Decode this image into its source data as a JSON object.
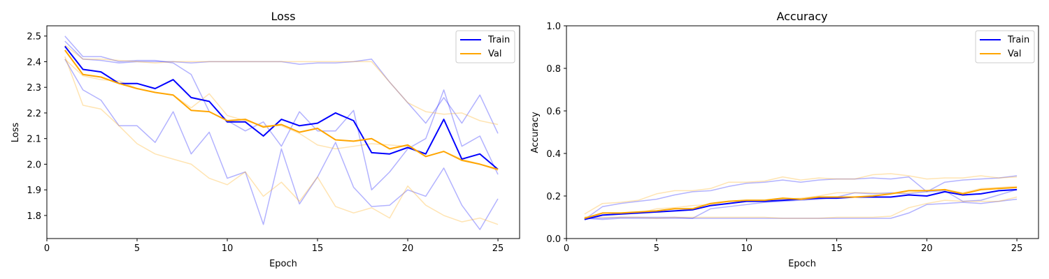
{
  "chart_data": [
    {
      "type": "line",
      "title": "Loss",
      "xlabel": "Epoch",
      "ylabel": "Loss",
      "xlim": [
        0,
        26.2
      ],
      "ylim": [
        1.71,
        2.54
      ],
      "xticks": [
        0,
        5,
        10,
        15,
        20,
        25
      ],
      "yticks": [
        1.8,
        1.9,
        2.0,
        2.1,
        2.2,
        2.3,
        2.4,
        2.5
      ],
      "ytick_labels": [
        "1.8",
        "1.9",
        "2.0",
        "2.1",
        "2.2",
        "2.3",
        "2.4",
        "2.5"
      ],
      "grid": false,
      "legend": "top-right",
      "x": [
        1,
        2,
        3,
        4,
        5,
        6,
        7,
        8,
        9,
        10,
        11,
        12,
        13,
        14,
        15,
        16,
        17,
        18,
        19,
        20,
        21,
        22,
        23,
        24,
        25
      ],
      "series": [
        {
          "name": "Train",
          "color": "#0000ff",
          "values": [
            2.46,
            2.37,
            2.36,
            2.315,
            2.315,
            2.295,
            2.33,
            2.26,
            2.245,
            2.165,
            2.165,
            2.11,
            2.175,
            2.15,
            2.16,
            2.2,
            2.17,
            2.045,
            2.04,
            2.065,
            2.04,
            2.175,
            2.02,
            2.04,
            1.98
          ]
        },
        {
          "name": "Val",
          "color": "#ffa500",
          "values": [
            2.445,
            2.35,
            2.34,
            2.315,
            2.295,
            2.28,
            2.27,
            2.21,
            2.205,
            2.17,
            2.175,
            2.145,
            2.155,
            2.125,
            2.14,
            2.095,
            2.09,
            2.1,
            2.06,
            2.075,
            2.03,
            2.05,
            2.015,
            2.0,
            1.98
          ]
        },
        {
          "color": "#0000ff",
          "faint": true,
          "values": [
            2.5,
            2.42,
            2.42,
            2.4,
            2.405,
            2.405,
            2.395,
            2.35,
            2.205,
            2.17,
            2.13,
            2.165,
            2.07,
            2.205,
            2.13,
            2.13,
            2.21,
            1.9,
            1.97,
            2.06,
            2.1,
            2.29,
            2.07,
            2.11,
            1.96
          ]
        },
        {
          "color": "#0000ff",
          "faint": true,
          "values": [
            2.41,
            2.29,
            2.25,
            2.15,
            2.15,
            2.085,
            2.205,
            2.04,
            2.125,
            1.945,
            1.97,
            1.765,
            2.06,
            1.845,
            1.95,
            2.085,
            1.91,
            1.835,
            1.84,
            1.9,
            1.875,
            1.985,
            1.84,
            1.745,
            1.865
          ]
        },
        {
          "color": "#0000ff",
          "faint": true,
          "values": [
            2.48,
            2.41,
            2.405,
            2.395,
            2.4,
            2.4,
            2.4,
            2.395,
            2.4,
            2.4,
            2.4,
            2.4,
            2.4,
            2.39,
            2.395,
            2.395,
            2.4,
            2.41,
            2.32,
            2.24,
            2.16,
            2.26,
            2.16,
            2.27,
            2.12
          ]
        },
        {
          "color": "#ffa500",
          "faint": true,
          "values": [
            2.465,
            2.41,
            2.41,
            2.405,
            2.4,
            2.395,
            2.4,
            2.4,
            2.4,
            2.4,
            2.4,
            2.4,
            2.4,
            2.4,
            2.4,
            2.4,
            2.4,
            2.4,
            2.32,
            2.24,
            2.205,
            2.195,
            2.2,
            2.17,
            2.155
          ]
        },
        {
          "color": "#ffa500",
          "faint": true,
          "values": [
            2.42,
            2.23,
            2.215,
            2.15,
            2.08,
            2.04,
            2.02,
            2.0,
            1.945,
            1.92,
            1.97,
            1.875,
            1.93,
            1.855,
            1.95,
            1.835,
            1.81,
            1.83,
            1.79,
            1.915,
            1.84,
            1.8,
            1.775,
            1.79,
            1.765
          ]
        },
        {
          "color": "#ffa500",
          "faint": true,
          "values": [
            2.41,
            2.345,
            2.33,
            2.325,
            2.295,
            2.28,
            2.27,
            2.22,
            2.275,
            2.19,
            2.17,
            2.15,
            2.15,
            2.12,
            2.075,
            2.06,
            2.07,
            2.08,
            2.075,
            2.07,
            2.03,
            2.05,
            2.02,
            2.0,
            1.975
          ]
        }
      ]
    },
    {
      "type": "line",
      "title": "Accuracy",
      "xlabel": "Epoch",
      "ylabel": "Accuracy",
      "xlim": [
        0,
        26.2
      ],
      "ylim": [
        0.0,
        1.0
      ],
      "xticks": [
        0,
        5,
        10,
        15,
        20,
        25
      ],
      "yticks": [
        0.0,
        0.2,
        0.4,
        0.6,
        0.8,
        1.0
      ],
      "ytick_labels": [
        "0.0",
        "0.2",
        "0.4",
        "0.6",
        "0.8",
        "1.0"
      ],
      "grid": false,
      "legend": "top-right",
      "x": [
        1,
        2,
        3,
        4,
        5,
        6,
        7,
        8,
        9,
        10,
        11,
        12,
        13,
        14,
        15,
        16,
        17,
        18,
        19,
        20,
        21,
        22,
        23,
        24,
        25
      ],
      "series": [
        {
          "name": "Train",
          "color": "#0000ff",
          "values": [
            0.09,
            0.11,
            0.115,
            0.12,
            0.125,
            0.13,
            0.135,
            0.155,
            0.165,
            0.175,
            0.175,
            0.18,
            0.185,
            0.19,
            0.19,
            0.195,
            0.195,
            0.195,
            0.205,
            0.2,
            0.22,
            0.205,
            0.21,
            0.225,
            0.23
          ]
        },
        {
          "name": "Val",
          "color": "#ffa500",
          "values": [
            0.095,
            0.12,
            0.12,
            0.125,
            0.13,
            0.14,
            0.14,
            0.165,
            0.175,
            0.18,
            0.18,
            0.19,
            0.185,
            0.195,
            0.195,
            0.195,
            0.2,
            0.21,
            0.225,
            0.225,
            0.23,
            0.21,
            0.23,
            0.235,
            0.24
          ]
        },
        {
          "color": "#0000ff",
          "faint": true,
          "values": [
            0.09,
            0.15,
            0.165,
            0.175,
            0.185,
            0.205,
            0.22,
            0.225,
            0.245,
            0.26,
            0.265,
            0.275,
            0.265,
            0.275,
            0.28,
            0.28,
            0.285,
            0.28,
            0.29,
            0.22,
            0.265,
            0.275,
            0.28,
            0.285,
            0.295
          ]
        },
        {
          "color": "#0000ff",
          "faint": true,
          "values": [
            0.095,
            0.09,
            0.095,
            0.095,
            0.095,
            0.095,
            0.095,
            0.095,
            0.095,
            0.095,
            0.095,
            0.095,
            0.095,
            0.095,
            0.095,
            0.095,
            0.095,
            0.095,
            0.12,
            0.16,
            0.165,
            0.17,
            0.165,
            0.175,
            0.185
          ]
        },
        {
          "color": "#0000ff",
          "faint": true,
          "values": [
            0.095,
            0.095,
            0.1,
            0.1,
            0.1,
            0.1,
            0.095,
            0.14,
            0.15,
            0.16,
            0.17,
            0.175,
            0.18,
            0.185,
            0.195,
            0.215,
            0.21,
            0.215,
            0.21,
            0.22,
            0.225,
            0.175,
            0.18,
            0.205,
            0.23
          ]
        },
        {
          "color": "#ffa500",
          "faint": true,
          "values": [
            0.115,
            0.165,
            0.17,
            0.18,
            0.21,
            0.225,
            0.225,
            0.235,
            0.265,
            0.265,
            0.27,
            0.29,
            0.275,
            0.285,
            0.28,
            0.28,
            0.3,
            0.305,
            0.295,
            0.28,
            0.285,
            0.285,
            0.295,
            0.285,
            0.29
          ]
        },
        {
          "color": "#ffa500",
          "faint": true,
          "values": [
            0.1,
            0.1,
            0.1,
            0.1,
            0.095,
            0.1,
            0.1,
            0.1,
            0.1,
            0.1,
            0.1,
            0.095,
            0.095,
            0.095,
            0.1,
            0.1,
            0.1,
            0.105,
            0.145,
            0.165,
            0.18,
            0.175,
            0.175,
            0.175,
            0.195
          ]
        },
        {
          "color": "#ffa500",
          "faint": true,
          "values": [
            0.1,
            0.11,
            0.115,
            0.12,
            0.14,
            0.145,
            0.155,
            0.16,
            0.175,
            0.175,
            0.18,
            0.185,
            0.19,
            0.2,
            0.215,
            0.215,
            0.215,
            0.21,
            0.215,
            0.225,
            0.23,
            0.215,
            0.235,
            0.24,
            0.245
          ]
        }
      ]
    }
  ]
}
